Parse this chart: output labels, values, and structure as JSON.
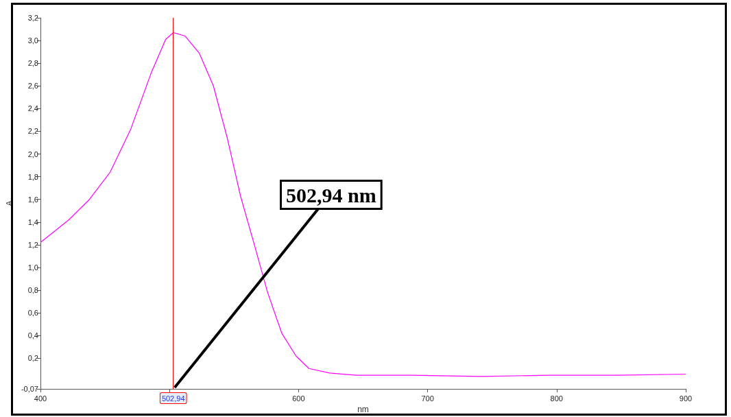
{
  "chart_data": {
    "type": "line",
    "xlabel": "nm",
    "ylabel": "A",
    "x": [
      400,
      422,
      438,
      454,
      470,
      486,
      497,
      503,
      512,
      523,
      534,
      545,
      555,
      566,
      576,
      587,
      598,
      608,
      624,
      645,
      688,
      741,
      794,
      847,
      900
    ],
    "series": [
      {
        "color": "#ff00ff",
        "values": [
          1.22,
          1.42,
          1.6,
          1.84,
          2.22,
          2.72,
          3.01,
          3.07,
          3.04,
          2.89,
          2.6,
          2.13,
          1.63,
          1.19,
          0.78,
          0.42,
          0.22,
          0.11,
          0.07,
          0.05,
          0.05,
          0.04,
          0.05,
          0.05,
          0.06
        ]
      }
    ],
    "xlim": [
      400,
      900
    ],
    "xticks": [
      400,
      {
        "value": 500,
        "label": null
      },
      600,
      700,
      800,
      900
    ],
    "ylim": [
      -0.07,
      3.2
    ],
    "yticks": [
      {
        "value": -0.07,
        "label": "-0,07"
      },
      {
        "value": 0.2,
        "label": "0,2"
      },
      {
        "value": 0.4,
        "label": "0,4"
      },
      {
        "value": 0.6,
        "label": "0,6"
      },
      {
        "value": 0.8,
        "label": "0,8"
      },
      {
        "value": 1.0,
        "label": "1,0"
      },
      {
        "value": 1.2,
        "label": "1,2"
      },
      {
        "value": 1.4,
        "label": "1,4"
      },
      {
        "value": 1.6,
        "label": "1,6"
      },
      {
        "value": 1.8,
        "label": "1,8"
      },
      {
        "value": 2.0,
        "label": "2,0"
      },
      {
        "value": 2.2,
        "label": "2,2"
      },
      {
        "value": 2.4,
        "label": "2,4"
      },
      {
        "value": 2.6,
        "label": "2,6"
      },
      {
        "value": 2.8,
        "label": "2,8"
      },
      {
        "value": 3.0,
        "label": "3,0"
      },
      {
        "value": 3.2,
        "label": "3,2"
      }
    ],
    "ref_lines": [
      {
        "axis": "x",
        "value": 502.94,
        "label": "502,94",
        "color": "#ff0000"
      }
    ],
    "annotations": [
      {
        "text": "502,94 nm",
        "x": 502.94,
        "y": -0.07
      }
    ],
    "grid": false,
    "marker": "none",
    "line_style": "solid"
  }
}
